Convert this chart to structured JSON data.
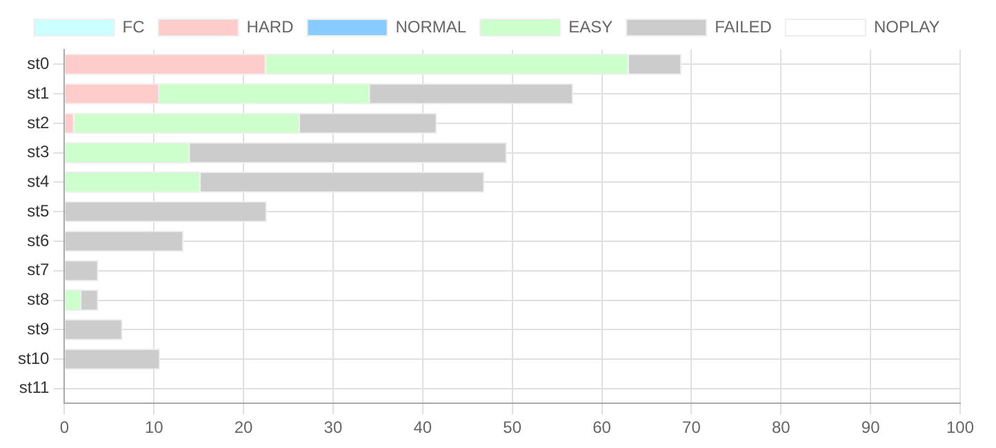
{
  "chart_data": {
    "type": "bar",
    "orientation": "horizontal",
    "stacked": true,
    "categories": [
      "st0",
      "st1",
      "st2",
      "st3",
      "st4",
      "st5",
      "st6",
      "st7",
      "st8",
      "st9",
      "st10",
      "st11"
    ],
    "series": [
      {
        "name": "FC",
        "color": "#ccffff",
        "values": [
          null,
          null,
          null,
          null,
          null,
          null,
          null,
          null,
          null,
          null,
          null,
          null
        ]
      },
      {
        "name": "HARD",
        "color": "#ffcccc",
        "values": [
          22.5,
          10.6,
          1.1,
          null,
          null,
          null,
          null,
          null,
          null,
          null,
          null,
          null
        ]
      },
      {
        "name": "NORMAL",
        "color": "#88ccff",
        "values": [
          null,
          null,
          null,
          null,
          null,
          null,
          null,
          null,
          null,
          null,
          null,
          null
        ]
      },
      {
        "name": "EASY",
        "color": "#ccffcc",
        "values": [
          40.5,
          23.5,
          25.2,
          14.0,
          15.2,
          null,
          null,
          null,
          1.9,
          null,
          null,
          null
        ]
      },
      {
        "name": "FAILED",
        "color": "#cccccc",
        "values": [
          5.9,
          22.7,
          15.3,
          35.4,
          31.7,
          22.6,
          13.3,
          3.8,
          1.9,
          6.5,
          10.7,
          null
        ]
      },
      {
        "name": "NOPLAY",
        "color": "#ffffff",
        "values": [
          null,
          null,
          null,
          null,
          null,
          null,
          null,
          null,
          null,
          null,
          null,
          null
        ]
      }
    ],
    "xlim": [
      0,
      100
    ],
    "xticks": [
      0,
      10,
      20,
      30,
      40,
      50,
      60,
      70,
      80,
      90,
      100
    ],
    "grid": true,
    "legend": "top"
  }
}
